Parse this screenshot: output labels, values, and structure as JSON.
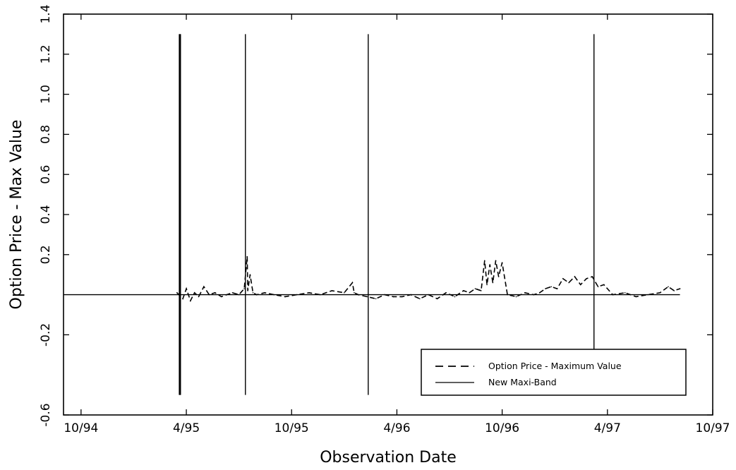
{
  "chart_data": {
    "type": "line",
    "title": "",
    "xlabel": "Observation Date",
    "ylabel": "Option Price - Max Value",
    "xlim": [
      "1994-09",
      "1997-10"
    ],
    "ylim": [
      -0.6,
      1.4
    ],
    "x_ticks": [
      {
        "date": "1994-10",
        "label": "10/94"
      },
      {
        "date": "1995-04",
        "label": "4/95"
      },
      {
        "date": "1995-10",
        "label": "10/95"
      },
      {
        "date": "1996-04",
        "label": "4/96"
      },
      {
        "date": "1996-10",
        "label": "10/96"
      },
      {
        "date": "1997-04",
        "label": "4/97"
      },
      {
        "date": "1997-10",
        "label": "10/97"
      }
    ],
    "y_ticks": [
      {
        "value": -0.6,
        "label": "-0.6"
      },
      {
        "value": -0.2,
        "label": "-0.2"
      },
      {
        "value": 0.2,
        "label": "0.2"
      },
      {
        "value": 0.4,
        "label": "0.4"
      },
      {
        "value": 0.6,
        "label": "0.6"
      },
      {
        "value": 0.8,
        "label": "0.8"
      },
      {
        "value": 1.0,
        "label": "1.0"
      },
      {
        "value": 1.2,
        "label": "1.2"
      },
      {
        "value": 1.4,
        "label": "1.4"
      }
    ],
    "grid": false,
    "legend_position": "bottom-right",
    "series": [
      {
        "name": "Option Price - Maximum Value",
        "style": "dashed",
        "x": [
          "1995-03-15",
          "1995-03-25",
          "1995-04-01",
          "1995-04-08",
          "1995-04-15",
          "1995-04-22",
          "1995-05-01",
          "1995-05-10",
          "1995-05-20",
          "1995-06-01",
          "1995-06-10",
          "1995-06-20",
          "1995-07-01",
          "1995-07-10",
          "1995-07-15",
          "1995-07-16",
          "1995-07-20",
          "1995-07-25",
          "1995-08-01",
          "1995-08-15",
          "1995-09-01",
          "1995-09-20",
          "1995-10-10",
          "1995-11-01",
          "1995-11-20",
          "1995-12-10",
          "1996-01-01",
          "1996-01-15",
          "1996-01-18",
          "1996-01-25",
          "1996-02-10",
          "1996-02-25",
          "1996-03-10",
          "1996-03-25",
          "1996-04-10",
          "1996-04-25",
          "1996-05-10",
          "1996-05-25",
          "1996-06-10",
          "1996-06-25",
          "1996-07-10",
          "1996-07-25",
          "1996-08-05",
          "1996-08-15",
          "1996-08-25",
          "1996-09-01",
          "1996-09-05",
          "1996-09-10",
          "1996-09-15",
          "1996-09-20",
          "1996-09-25",
          "1996-10-01",
          "1996-10-10",
          "1996-10-25",
          "1996-11-10",
          "1996-11-25",
          "1996-12-05",
          "1996-12-15",
          "1996-12-25",
          "1997-01-05",
          "1997-01-15",
          "1997-01-25",
          "1997-02-05",
          "1997-02-15",
          "1997-02-25",
          "1997-03-05",
          "1997-03-15",
          "1997-03-25",
          "1997-04-10",
          "1997-05-01",
          "1997-05-20",
          "1997-06-10",
          "1997-07-01",
          "1997-07-15",
          "1997-07-25",
          "1997-08-05"
        ],
        "y": [
          0.01,
          -0.02,
          0.03,
          -0.03,
          0.01,
          -0.01,
          0.04,
          0.0,
          0.01,
          -0.01,
          0.0,
          0.01,
          0.0,
          0.03,
          0.19,
          0.02,
          0.1,
          0.01,
          0.0,
          0.01,
          0.0,
          -0.01,
          0.0,
          0.01,
          0.0,
          0.02,
          0.01,
          0.06,
          0.01,
          0.0,
          -0.01,
          -0.02,
          0.0,
          -0.01,
          -0.01,
          0.0,
          -0.02,
          0.0,
          -0.02,
          0.01,
          -0.01,
          0.02,
          0.01,
          0.03,
          0.02,
          0.17,
          0.05,
          0.15,
          0.06,
          0.17,
          0.09,
          0.16,
          0.0,
          -0.01,
          0.01,
          0.0,
          0.01,
          0.03,
          0.04,
          0.03,
          0.08,
          0.06,
          0.09,
          0.05,
          0.08,
          0.09,
          0.04,
          0.05,
          0.0,
          0.01,
          -0.01,
          0.0,
          0.01,
          0.04,
          0.02,
          0.03
        ]
      },
      {
        "name": "New Maxi-Band",
        "style": "solid",
        "baseline": 0.0,
        "vertical_lines": [
          {
            "x": "1995-03-19",
            "y_min": -0.5,
            "y_max": 1.3
          },
          {
            "x": "1995-03-20",
            "y_min": -0.5,
            "y_max": 1.3
          },
          {
            "x": "1995-03-21",
            "y_min": -0.5,
            "y_max": 1.3
          },
          {
            "x": "1995-07-12",
            "y_min": -0.5,
            "y_max": 1.3
          },
          {
            "x": "1996-02-12",
            "y_min": -0.5,
            "y_max": 1.3
          },
          {
            "x": "1997-03-08",
            "y_min": -0.28,
            "y_max": 1.3
          }
        ]
      }
    ]
  }
}
